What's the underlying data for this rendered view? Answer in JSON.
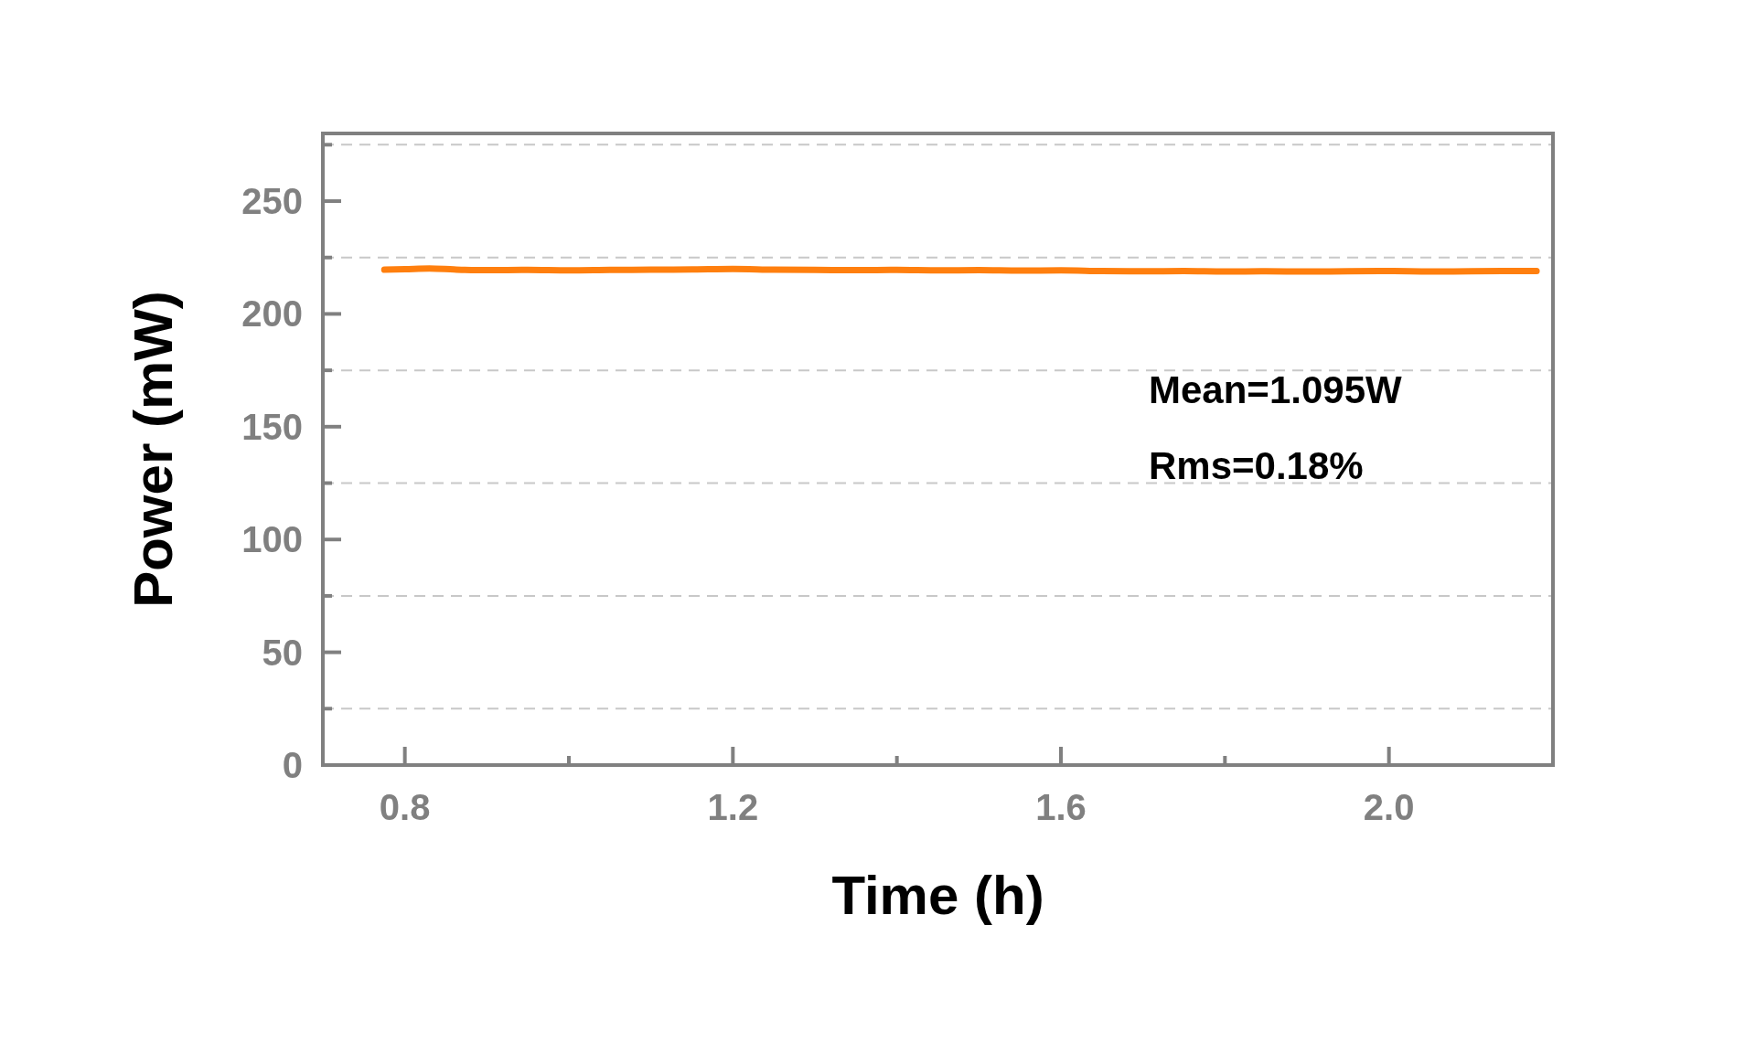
{
  "chart_data": {
    "type": "line",
    "xlabel": "Time (h)",
    "ylabel": "Power (mW)",
    "annotations": [
      "Mean=1.095W",
      "Rms=0.18%"
    ],
    "xlim": [
      0.7,
      2.2
    ],
    "xticks": [
      0.8,
      {
        "value": 1.0,
        "label": null
      },
      1.2,
      {
        "value": 1.4,
        "label": null
      },
      1.6,
      {
        "value": 1.8,
        "label": null
      },
      {
        "value": 2.0,
        "label": "2.0"
      }
    ],
    "ylim": [
      0,
      280
    ],
    "yticks": [
      0,
      {
        "value": 25,
        "label": null
      },
      50,
      {
        "value": 75,
        "label": null
      },
      100,
      {
        "value": 125,
        "label": null
      },
      150,
      {
        "value": 175,
        "label": null
      },
      200,
      {
        "value": 225,
        "label": null
      },
      250,
      {
        "value": 275,
        "label": null
      }
    ],
    "grid": "y",
    "line_style": "solid",
    "marker": "none",
    "series": [
      {
        "color": "#ff7f0e",
        "x": [
          0.775,
          0.8,
          0.83,
          0.86,
          0.9,
          0.95,
          1.0,
          1.05,
          1.1,
          1.15,
          1.2,
          1.25,
          1.3,
          1.35,
          1.4,
          1.45,
          1.5,
          1.55,
          1.6,
          1.65,
          1.7,
          1.75,
          1.8,
          1.85,
          1.9,
          1.95,
          2.0,
          2.05,
          2.1,
          2.15,
          2.18
        ],
        "values": [
          219.6,
          219.8,
          220.1,
          219.7,
          219.4,
          219.5,
          219.3,
          219.5,
          219.6,
          219.7,
          219.9,
          219.6,
          219.5,
          219.4,
          219.5,
          219.3,
          219.4,
          219.2,
          219.3,
          219.0,
          218.9,
          219.0,
          218.8,
          218.9,
          218.8,
          218.9,
          219.0,
          218.8,
          218.9,
          219.0,
          219.0
        ]
      }
    ]
  }
}
